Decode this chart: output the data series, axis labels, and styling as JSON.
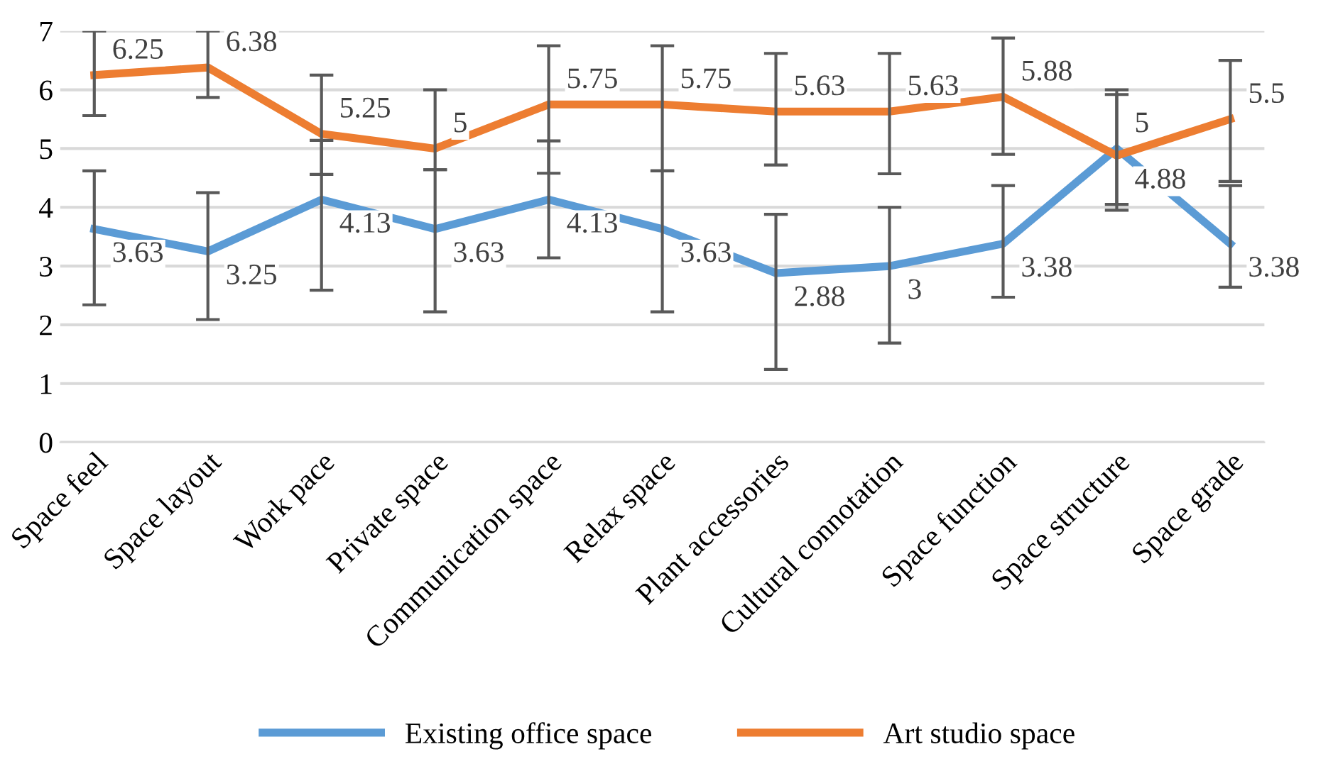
{
  "chart_data": {
    "type": "line",
    "categories": [
      "Space feel",
      "Space layout",
      "Work pace",
      "Private space",
      "Communication space",
      "Relax space",
      "Plant accessories",
      "Cultural connotation",
      "Space function",
      "Space structure",
      "Space grade"
    ],
    "series": [
      {
        "name": "Existing office space",
        "color": "#5b9bd5",
        "values": [
          3.63,
          3.25,
          4.13,
          3.63,
          4.13,
          3.63,
          2.88,
          3,
          3.38,
          5,
          3.38
        ],
        "errors": [
          [
            2.34,
            4.62
          ],
          [
            2.09,
            4.25
          ],
          [
            2.59,
            5.14
          ],
          [
            2.22,
            4.64
          ],
          [
            3.14,
            5.13
          ],
          [
            2.22,
            4.62
          ],
          [
            1.24,
            3.88
          ],
          [
            1.69,
            4.0
          ],
          [
            2.47,
            4.37
          ],
          [
            4.05,
            5.92
          ],
          [
            2.64,
            4.37
          ]
        ]
      },
      {
        "name": "Art studio space",
        "color": "#ed7d31",
        "values": [
          6.25,
          6.38,
          5.25,
          5,
          5.75,
          5.75,
          5.63,
          5.63,
          5.88,
          4.88,
          5.5
        ],
        "errors": [
          [
            5.56,
            7.0
          ],
          [
            5.87,
            7.0
          ],
          [
            4.56,
            6.25
          ],
          [
            4.64,
            6.0
          ],
          [
            4.58,
            6.75
          ],
          [
            4.62,
            6.75
          ],
          [
            4.72,
            6.62
          ],
          [
            4.57,
            6.62
          ],
          [
            4.9,
            6.88
          ],
          [
            3.95,
            6.0
          ],
          [
            4.44,
            6.5
          ]
        ]
      }
    ],
    "ylim": [
      0,
      7
    ],
    "yticks": [
      0,
      1,
      2,
      3,
      4,
      5,
      6,
      7
    ],
    "grid": "y",
    "legend": "bottom",
    "data_labels": true,
    "marker": "none",
    "line_style": "solid"
  }
}
